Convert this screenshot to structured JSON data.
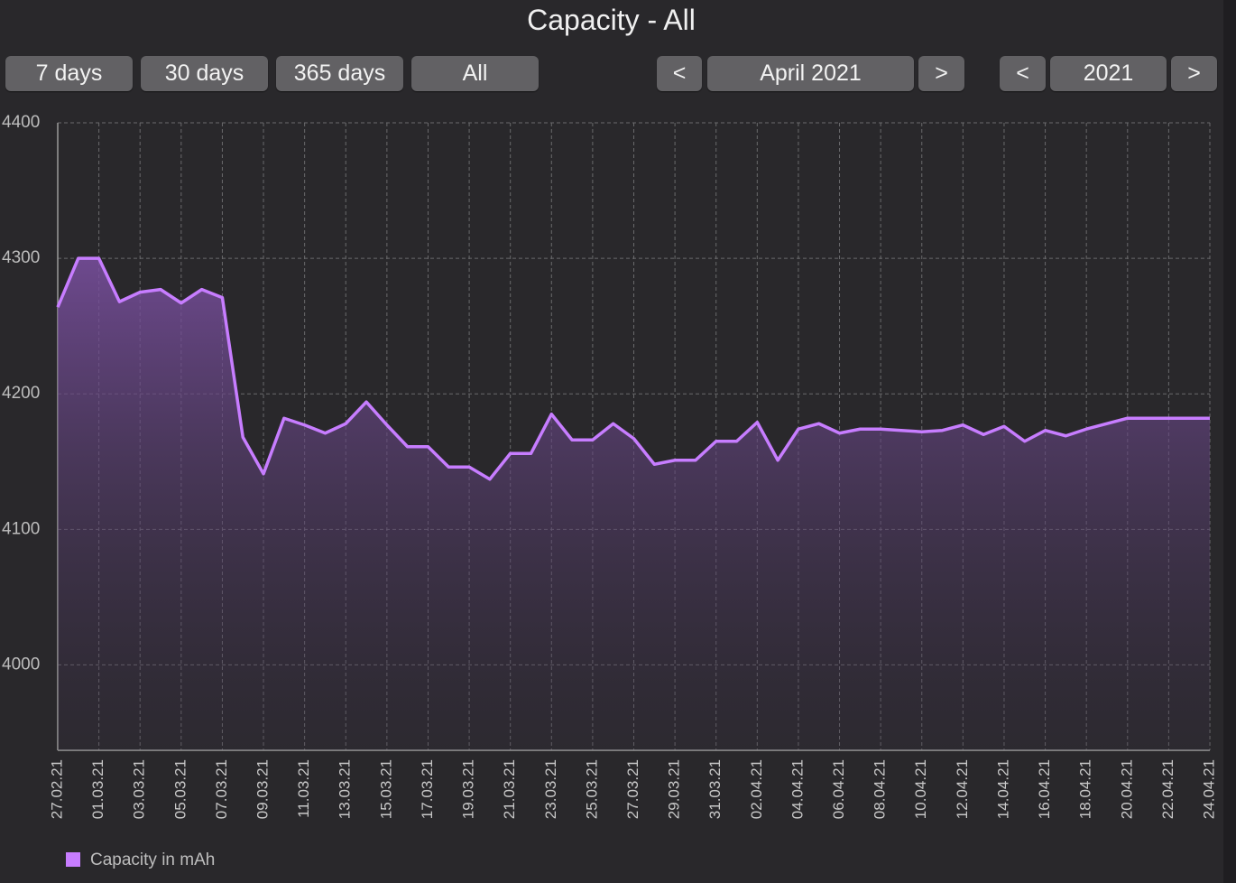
{
  "header": {
    "title": "Capacity - All"
  },
  "range_buttons": [
    "7 days",
    "30 days",
    "365 days",
    "All"
  ],
  "month_nav": {
    "prev": "<",
    "label": "April 2021",
    "next": ">"
  },
  "year_nav": {
    "prev": "<",
    "label": "2021",
    "next": ">"
  },
  "chart_data": {
    "type": "area",
    "categories": [
      "27.02.21",
      null,
      "01.03.21",
      null,
      "03.03.21",
      null,
      "05.03.21",
      null,
      "07.03.21",
      null,
      "09.03.21",
      null,
      "11.03.21",
      null,
      "13.03.21",
      null,
      "15.03.21",
      null,
      "17.03.21",
      null,
      "19.03.21",
      null,
      "21.03.21",
      null,
      "23.03.21",
      null,
      "25.03.21",
      null,
      "27.03.21",
      null,
      "29.03.21",
      null,
      "31.03.21",
      null,
      "02.04.21",
      null,
      "04.04.21",
      null,
      "06.04.21",
      null,
      "08.04.21",
      null,
      "10.04.21",
      null,
      "12.04.21",
      null,
      "14.04.21",
      null,
      "16.04.21",
      null,
      "18.04.21",
      null,
      "20.04.21",
      null,
      "22.04.21",
      null,
      "24.04.21"
    ],
    "series": [
      {
        "name": "Capacity in mAh",
        "color": "#c77dff",
        "values": [
          4264,
          4300,
          4300,
          4268,
          4275,
          4277,
          4267,
          4277,
          4271,
          4168,
          4141,
          4182,
          4177,
          4171,
          4178,
          4194,
          4177,
          4161,
          4161,
          4146,
          4146,
          4137,
          4156,
          4156,
          4185,
          4166,
          4166,
          4178,
          4167,
          4148,
          4151,
          4151,
          4165,
          4165,
          4179,
          4151,
          4174,
          4178,
          4171,
          4174,
          4174,
          4173,
          4172,
          4173,
          4177,
          4170,
          4176,
          4165,
          4173,
          4169,
          4174,
          4178,
          4182,
          4182,
          4182,
          4182,
          4182
        ]
      }
    ],
    "ylim": [
      3937,
      4400
    ],
    "yticks": [
      4000,
      4100,
      4200,
      4300,
      4400
    ],
    "grid": true
  }
}
